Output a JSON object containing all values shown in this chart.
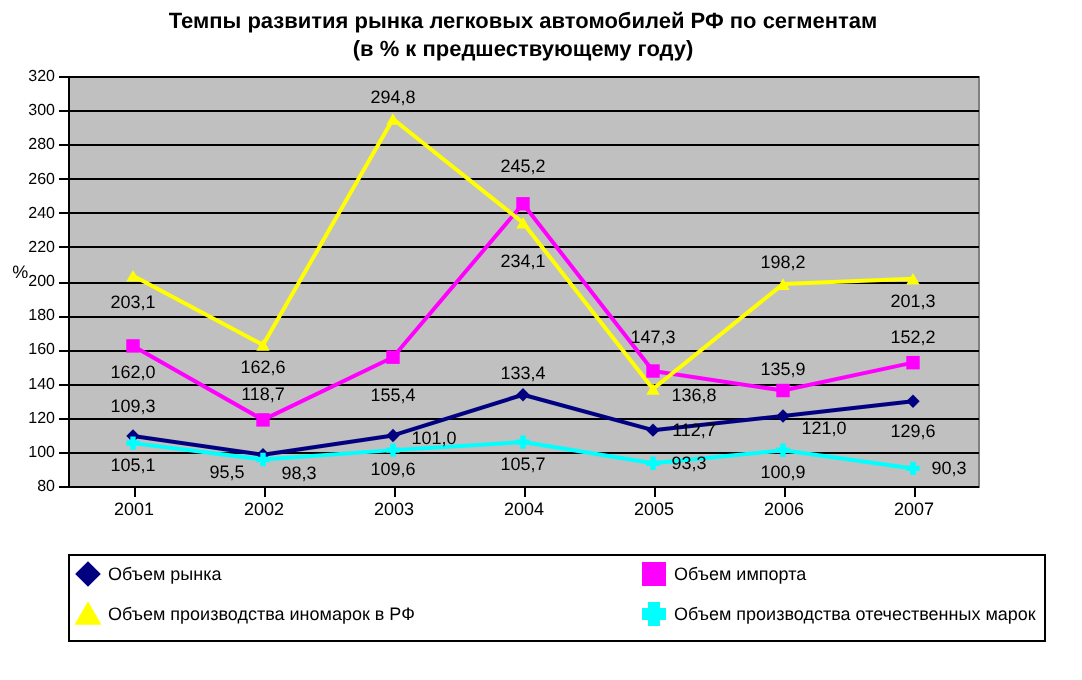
{
  "chart_data": {
    "type": "line",
    "title": "Темпы развития рынка легковых автомобилей РФ по сегментам",
    "subtitle": "(в % к предшествующему году)",
    "ylabel": "%",
    "categories": [
      "2001",
      "2002",
      "2003",
      "2004",
      "2005",
      "2006",
      "2007"
    ],
    "series": [
      {
        "name": "Объем рынка",
        "color": "#000080",
        "marker": "diamond",
        "values": [
          109.3,
          98.3,
          109.6,
          133.4,
          112.7,
          121.0,
          129.6
        ],
        "value_labels": [
          "109,3",
          "98,3",
          "109,6",
          "133,4",
          "112,7",
          "121,0",
          "129,6"
        ]
      },
      {
        "name": "Объем импорта",
        "color": "#ff00ff",
        "marker": "square",
        "values": [
          162.0,
          118.7,
          155.4,
          245.2,
          147.3,
          135.9,
          152.2
        ],
        "value_labels": [
          "162,0",
          "118,7",
          "155,4",
          "245,2",
          "147,3",
          "135,9",
          "152,2"
        ]
      },
      {
        "name": "Объем производства иномарок в РФ",
        "color": "#ffff00",
        "marker": "triangle",
        "values": [
          203.1,
          162.6,
          294.8,
          234.1,
          136.8,
          198.2,
          201.3
        ],
        "value_labels": [
          "203,1",
          "162,6",
          "294,8",
          "234,1",
          "136,8",
          "198,2",
          "201,3"
        ]
      },
      {
        "name": "Объем производства отечественных марок",
        "color": "#00ffff",
        "marker": "cross",
        "values": [
          105.1,
          95.5,
          101.0,
          105.7,
          93.3,
          100.9,
          90.3
        ],
        "value_labels": [
          "105,1",
          "95,5",
          "101,0",
          "105,7",
          "93,3",
          "100,9",
          "90,3"
        ]
      }
    ],
    "ylim": [
      80,
      320
    ],
    "yticks": [
      80,
      100,
      120,
      140,
      160,
      180,
      200,
      220,
      240,
      260,
      280,
      300,
      320
    ],
    "grid": "y",
    "legend": "bottom",
    "line_style": "solid"
  }
}
